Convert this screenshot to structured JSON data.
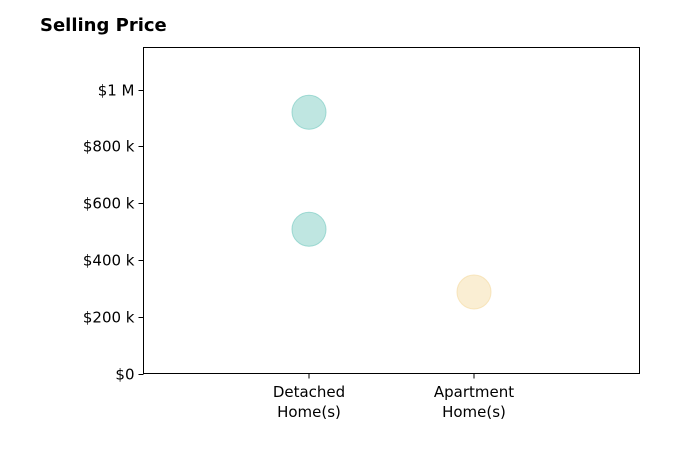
{
  "chart_data": {
    "type": "scatter",
    "title": "Selling Price",
    "xlabel": "",
    "ylabel": "",
    "categories": [
      [
        "Detached",
        "Home(s)"
      ],
      [
        "Apartment",
        "Home(s)"
      ]
    ],
    "ylim": [
      0,
      1150000
    ],
    "yticks": [
      {
        "value": 0,
        "label": "$0"
      },
      {
        "value": 200000,
        "label": "$200 k"
      },
      {
        "value": 400000,
        "label": "$400 k"
      },
      {
        "value": 600000,
        "label": "$600 k"
      },
      {
        "value": 800000,
        "label": "$800 k"
      },
      {
        "value": 1000000,
        "label": "$1 M"
      }
    ],
    "points": [
      {
        "category_index": 0,
        "value": 920000,
        "color": "#7fcdc4"
      },
      {
        "category_index": 0,
        "value": 508000,
        "color": "#7fcdc4"
      },
      {
        "category_index": 1,
        "value": 287000,
        "color": "#f5dda8"
      }
    ],
    "grid": false,
    "legend": "none"
  }
}
